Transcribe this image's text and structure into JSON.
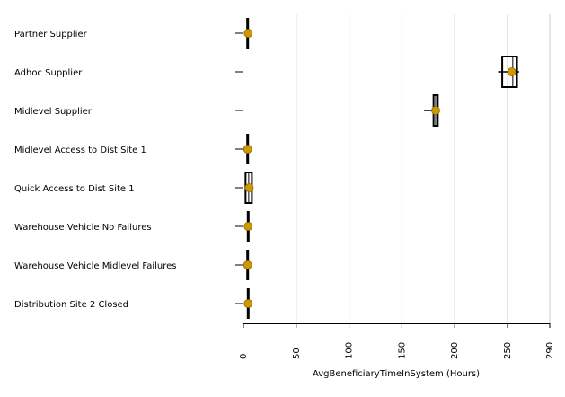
{
  "chart_data": {
    "type": "box",
    "orientation": "horizontal",
    "title": "",
    "xlabel": "AvgBeneficiaryTimeInSystem (Hours)",
    "ylabel": "",
    "xlim": [
      0,
      290
    ],
    "xticks": [
      0,
      50,
      100,
      150,
      200,
      250,
      290
    ],
    "grid": "vertical",
    "colors": {
      "mean_marker": "#CC9900",
      "box": "#000000",
      "grid": "#CCCCCC"
    },
    "categories": [
      "Partner Supplier",
      "Adhoc Supplier",
      "Midlevel Supplier",
      "Midlevel Access to Dist Site 1",
      "Quick Access to Dist Site 1",
      "Warehouse Vehicle No Failures",
      "Warehouse Vehicle Midlevel Failures",
      "Distribution Site 2 Closed"
    ],
    "boxes": [
      {
        "category": "Partner Supplier",
        "min": 3,
        "q1": 3,
        "median": 4,
        "q3": 5,
        "max": 5,
        "mean": 4.5
      },
      {
        "category": "Adhoc Supplier",
        "min": 241,
        "q1": 245,
        "median": 255,
        "q3": 259,
        "max": 261,
        "mean": 254
      },
      {
        "category": "Midlevel Supplier",
        "min": 171,
        "q1": 180,
        "median": 182,
        "q3": 184,
        "max": 185,
        "mean": 182
      },
      {
        "category": "Midlevel Access to Dist Site 1",
        "min": 3,
        "q1": 3,
        "median": 4,
        "q3": 5,
        "max": 5,
        "mean": 4
      },
      {
        "category": "Quick Access to Dist Site 1",
        "min": 2,
        "q1": 2,
        "median": 5,
        "q3": 8,
        "max": 8,
        "mean": 5.5
      },
      {
        "category": "Warehouse Vehicle No Failures",
        "min": 4,
        "q1": 4,
        "median": 4.5,
        "q3": 5,
        "max": 5,
        "mean": 4.5
      },
      {
        "category": "Warehouse Vehicle Midlevel Failures",
        "min": 3,
        "q1": 3,
        "median": 4,
        "q3": 5,
        "max": 5,
        "mean": 4
      },
      {
        "category": "Distribution Site 2 Closed",
        "min": 4,
        "q1": 4,
        "median": 4.5,
        "q3": 5,
        "max": 5,
        "mean": 4.5
      }
    ]
  }
}
